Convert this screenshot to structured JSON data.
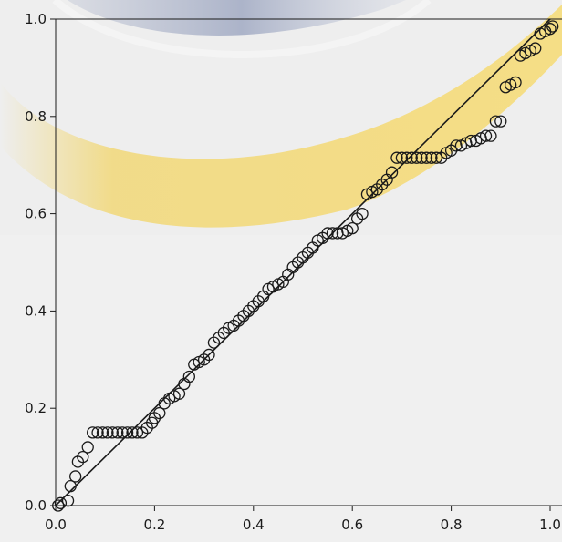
{
  "chart_data": {
    "type": "scatter",
    "title": "",
    "xlabel": "",
    "ylabel": "",
    "xlim": [
      0,
      1
    ],
    "ylim": [
      0,
      1
    ],
    "x_ticks": [
      "0.0",
      "0.2",
      "0.4",
      "0.6",
      "0.8",
      "1.0"
    ],
    "y_ticks": [
      "0.0",
      "0.2",
      "0.4",
      "0.6",
      "0.8",
      "1.0"
    ],
    "reference_line": {
      "from": [
        0,
        0
      ],
      "to": [
        1,
        1
      ]
    },
    "marker": "open-circle",
    "grid": false,
    "legend": "none",
    "colors": {
      "marker": "#1a1a1a",
      "line": "#1a1a1a",
      "background": "#f0f0f0",
      "watermark_yellow": "#f2d568",
      "watermark_blue": "#7f8cb0"
    },
    "series": [
      {
        "points": [
          [
            0.005,
            0.0
          ],
          [
            0.01,
            0.005
          ],
          [
            0.025,
            0.01
          ],
          [
            0.03,
            0.04
          ],
          [
            0.04,
            0.06
          ],
          [
            0.045,
            0.09
          ],
          [
            0.055,
            0.1
          ],
          [
            0.065,
            0.12
          ],
          [
            0.075,
            0.15
          ],
          [
            0.085,
            0.15
          ],
          [
            0.095,
            0.15
          ],
          [
            0.105,
            0.15
          ],
          [
            0.115,
            0.15
          ],
          [
            0.125,
            0.15
          ],
          [
            0.135,
            0.15
          ],
          [
            0.145,
            0.15
          ],
          [
            0.155,
            0.15
          ],
          [
            0.165,
            0.15
          ],
          [
            0.175,
            0.15
          ],
          [
            0.185,
            0.16
          ],
          [
            0.195,
            0.17
          ],
          [
            0.2,
            0.18
          ],
          [
            0.21,
            0.19
          ],
          [
            0.22,
            0.21
          ],
          [
            0.23,
            0.22
          ],
          [
            0.24,
            0.225
          ],
          [
            0.25,
            0.23
          ],
          [
            0.26,
            0.25
          ],
          [
            0.27,
            0.265
          ],
          [
            0.28,
            0.29
          ],
          [
            0.29,
            0.295
          ],
          [
            0.3,
            0.3
          ],
          [
            0.31,
            0.31
          ],
          [
            0.32,
            0.335
          ],
          [
            0.33,
            0.345
          ],
          [
            0.34,
            0.355
          ],
          [
            0.35,
            0.365
          ],
          [
            0.36,
            0.37
          ],
          [
            0.37,
            0.38
          ],
          [
            0.38,
            0.39
          ],
          [
            0.39,
            0.4
          ],
          [
            0.4,
            0.41
          ],
          [
            0.41,
            0.42
          ],
          [
            0.42,
            0.43
          ],
          [
            0.43,
            0.445
          ],
          [
            0.44,
            0.45
          ],
          [
            0.45,
            0.455
          ],
          [
            0.46,
            0.46
          ],
          [
            0.47,
            0.475
          ],
          [
            0.48,
            0.49
          ],
          [
            0.49,
            0.5
          ],
          [
            0.5,
            0.51
          ],
          [
            0.51,
            0.52
          ],
          [
            0.52,
            0.53
          ],
          [
            0.53,
            0.545
          ],
          [
            0.54,
            0.55
          ],
          [
            0.55,
            0.56
          ],
          [
            0.56,
            0.56
          ],
          [
            0.57,
            0.56
          ],
          [
            0.58,
            0.56
          ],
          [
            0.59,
            0.565
          ],
          [
            0.6,
            0.57
          ],
          [
            0.61,
            0.59
          ],
          [
            0.62,
            0.6
          ],
          [
            0.63,
            0.64
          ],
          [
            0.64,
            0.645
          ],
          [
            0.65,
            0.65
          ],
          [
            0.66,
            0.66
          ],
          [
            0.67,
            0.67
          ],
          [
            0.68,
            0.685
          ],
          [
            0.69,
            0.715
          ],
          [
            0.7,
            0.715
          ],
          [
            0.71,
            0.715
          ],
          [
            0.72,
            0.715
          ],
          [
            0.73,
            0.715
          ],
          [
            0.74,
            0.715
          ],
          [
            0.75,
            0.715
          ],
          [
            0.76,
            0.715
          ],
          [
            0.77,
            0.715
          ],
          [
            0.78,
            0.715
          ],
          [
            0.79,
            0.725
          ],
          [
            0.8,
            0.73
          ],
          [
            0.81,
            0.74
          ],
          [
            0.82,
            0.74
          ],
          [
            0.83,
            0.745
          ],
          [
            0.84,
            0.75
          ],
          [
            0.85,
            0.75
          ],
          [
            0.86,
            0.755
          ],
          [
            0.87,
            0.76
          ],
          [
            0.88,
            0.76
          ],
          [
            0.89,
            0.79
          ],
          [
            0.9,
            0.79
          ],
          [
            0.91,
            0.86
          ],
          [
            0.92,
            0.865
          ],
          [
            0.93,
            0.87
          ],
          [
            0.94,
            0.925
          ],
          [
            0.95,
            0.93
          ],
          [
            0.96,
            0.935
          ],
          [
            0.97,
            0.94
          ],
          [
            0.98,
            0.97
          ],
          [
            0.99,
            0.975
          ],
          [
            1.0,
            0.98
          ],
          [
            1.005,
            0.985
          ]
        ]
      }
    ]
  }
}
